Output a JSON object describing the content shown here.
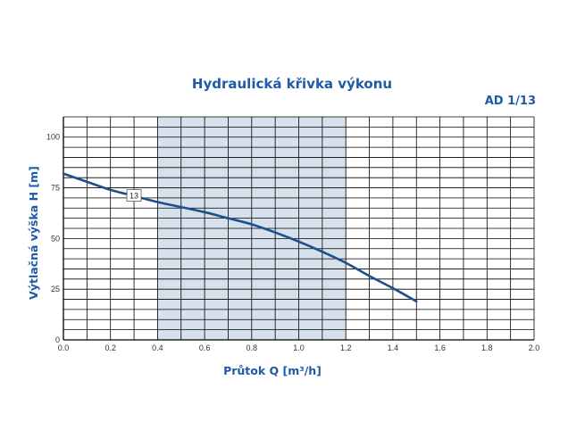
{
  "chart_data": {
    "type": "line",
    "title": "Hydraulická křivka výkonu",
    "model": "AD 1/13",
    "xlabel": "Průtok Q [m³/h]",
    "ylabel": "Výtlačná výška H [m]",
    "xlim": [
      0,
      2.0
    ],
    "ylim": [
      0,
      110
    ],
    "x_ticks": [
      "0.0",
      "0.2",
      "0.4",
      "0.6",
      "0.8",
      "1.0",
      "1.2",
      "1.4",
      "1.6",
      "1.8",
      "2.0"
    ],
    "y_ticks": [
      "0",
      "25",
      "50",
      "75",
      "100"
    ],
    "shaded_range": [
      0.4,
      1.2
    ],
    "grid": true,
    "series": [
      {
        "name": "13",
        "x": [
          0.0,
          0.1,
          0.2,
          0.3,
          0.4,
          0.5,
          0.6,
          0.7,
          0.8,
          0.9,
          1.0,
          1.1,
          1.2,
          1.3,
          1.4,
          1.5
        ],
        "values": [
          82,
          78,
          74,
          71,
          68,
          65.5,
          63,
          60,
          57,
          53,
          48.5,
          43.5,
          38,
          31.5,
          25.5,
          19
        ]
      }
    ],
    "colors": {
      "title": "#1e5aa8",
      "curve": "#1f4f8a",
      "shade": "#d6e1ec",
      "grid": "#000000"
    }
  }
}
